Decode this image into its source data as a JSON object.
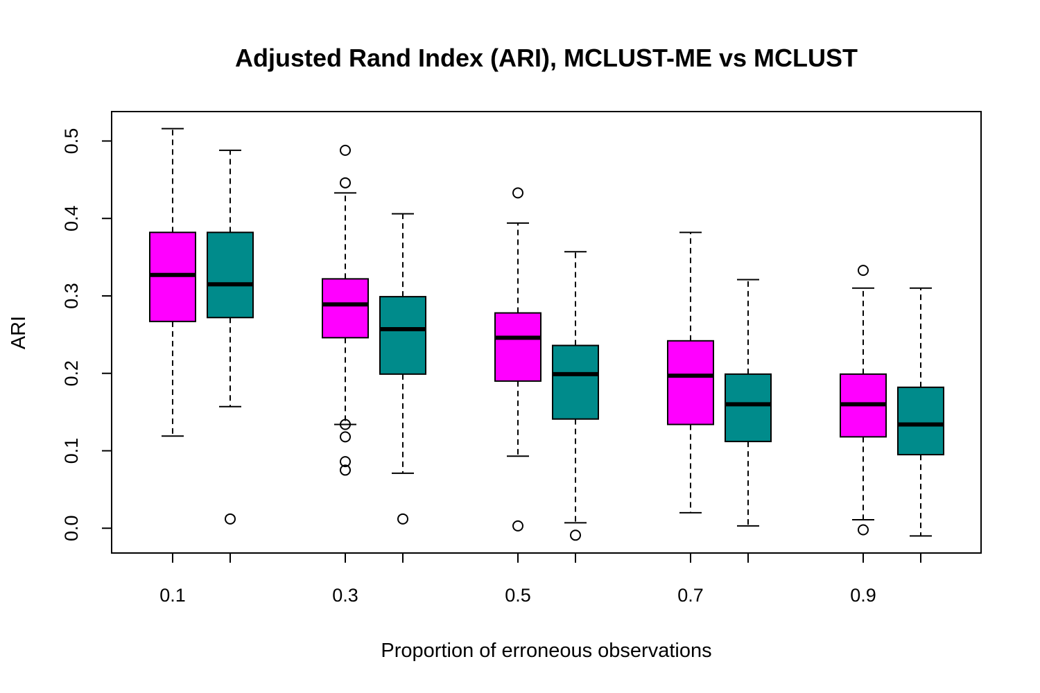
{
  "chart_data": {
    "type": "boxplot",
    "title": "Adjusted Rand Index (ARI), MCLUST-ME vs MCLUST",
    "xlabel": "Proportion of erroneous observations",
    "ylabel": "ARI",
    "categories": [
      "0.1",
      "0.3",
      "0.5",
      "0.7",
      "0.9"
    ],
    "yticks": [
      "0.0",
      "0.1",
      "0.2",
      "0.3",
      "0.4",
      "0.5"
    ],
    "ylim": [
      -0.032,
      0.538
    ],
    "grid": false,
    "colors": {
      "first": "#FF00FF",
      "second": "#008B8B"
    },
    "series": [
      {
        "color": "#FF00FF",
        "boxes": [
          {
            "whisker_low": 0.119,
            "q1": 0.267,
            "median": 0.327,
            "q3": 0.382,
            "whisker_high": 0.516,
            "outliers": []
          },
          {
            "whisker_low": 0.134,
            "q1": 0.246,
            "median": 0.289,
            "q3": 0.322,
            "whisker_high": 0.433,
            "outliers": [
              0.488,
              0.446,
              0.134,
              0.118,
              0.086,
              0.075
            ]
          },
          {
            "whisker_low": 0.093,
            "q1": 0.19,
            "median": 0.246,
            "q3": 0.278,
            "whisker_high": 0.394,
            "outliers": [
              0.433,
              0.003
            ]
          },
          {
            "whisker_low": 0.02,
            "q1": 0.134,
            "median": 0.197,
            "q3": 0.242,
            "whisker_high": 0.382,
            "outliers": []
          },
          {
            "whisker_low": 0.011,
            "q1": 0.118,
            "median": 0.16,
            "q3": 0.199,
            "whisker_high": 0.31,
            "outliers": [
              0.333,
              -0.002
            ]
          }
        ]
      },
      {
        "color": "#008B8B",
        "boxes": [
          {
            "whisker_low": 0.157,
            "q1": 0.272,
            "median": 0.315,
            "q3": 0.382,
            "whisker_high": 0.488,
            "outliers": [
              0.012
            ]
          },
          {
            "whisker_low": 0.071,
            "q1": 0.199,
            "median": 0.257,
            "q3": 0.299,
            "whisker_high": 0.406,
            "outliers": [
              0.012
            ]
          },
          {
            "whisker_low": 0.007,
            "q1": 0.141,
            "median": 0.199,
            "q3": 0.236,
            "whisker_high": 0.357,
            "outliers": [
              -0.009
            ]
          },
          {
            "whisker_low": 0.003,
            "q1": 0.112,
            "median": 0.16,
            "q3": 0.199,
            "whisker_high": 0.321,
            "outliers": []
          },
          {
            "whisker_low": -0.01,
            "q1": 0.095,
            "median": 0.134,
            "q3": 0.182,
            "whisker_high": 0.31,
            "outliers": []
          }
        ]
      }
    ]
  }
}
